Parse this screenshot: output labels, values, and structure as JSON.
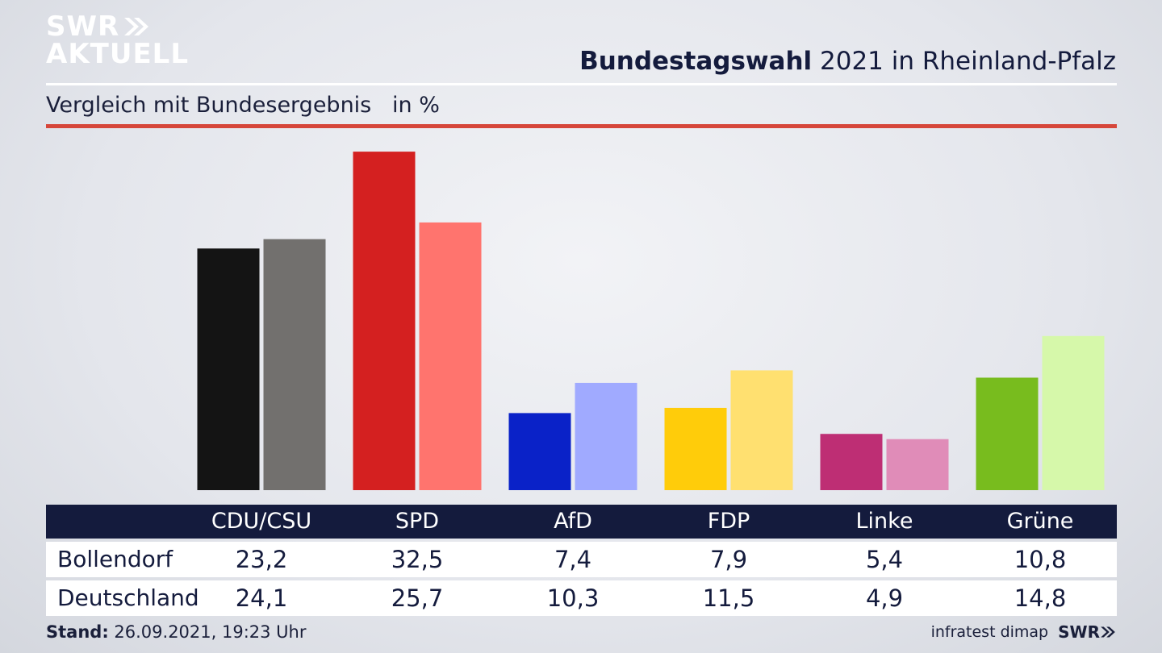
{
  "brand": {
    "line1": "SWR",
    "line2": "AKTUELL",
    "footer_mark": "SWR"
  },
  "header": {
    "title_bold": "Bundestagswahl",
    "title_rest": " 2021 in Rheinland-Pfalz",
    "subtitle": "Vergleich mit Bundesergebnis   in %"
  },
  "footer": {
    "stand_label": "Stand:",
    "stand_value": " 26.09.2021, 19:23 Uhr",
    "source": "infratest dimap"
  },
  "chart_data": {
    "type": "bar",
    "categories": [
      "CDU/CSU",
      "SPD",
      "AfD",
      "FDP",
      "Linke",
      "Grüne"
    ],
    "series": [
      {
        "name": "Bollendorf",
        "values": [
          23.2,
          32.5,
          7.4,
          7.9,
          5.4,
          10.8
        ]
      },
      {
        "name": "Deutschland",
        "values": [
          24.1,
          25.7,
          10.3,
          11.5,
          4.9,
          14.8
        ]
      }
    ],
    "display_values": {
      "Bollendorf": [
        "23,2",
        "32,5",
        "7,4",
        "7,9",
        "5,4",
        "10,8"
      ],
      "Deutschland": [
        "24,1",
        "25,7",
        "10,3",
        "11,5",
        "4,9",
        "14,8"
      ]
    },
    "colors": {
      "Bollendorf": [
        "#141414",
        "#d42020",
        "#0a22c8",
        "#ffcc0a",
        "#be2e74",
        "#78bc1e"
      ],
      "Deutschland": [
        "#72706e",
        "#ff746e",
        "#a0aaff",
        "#ffe070",
        "#e08cb8",
        "#d6f8aa"
      ]
    },
    "ylim": [
      0,
      35
    ],
    "grid": false,
    "legend": "table-below"
  }
}
